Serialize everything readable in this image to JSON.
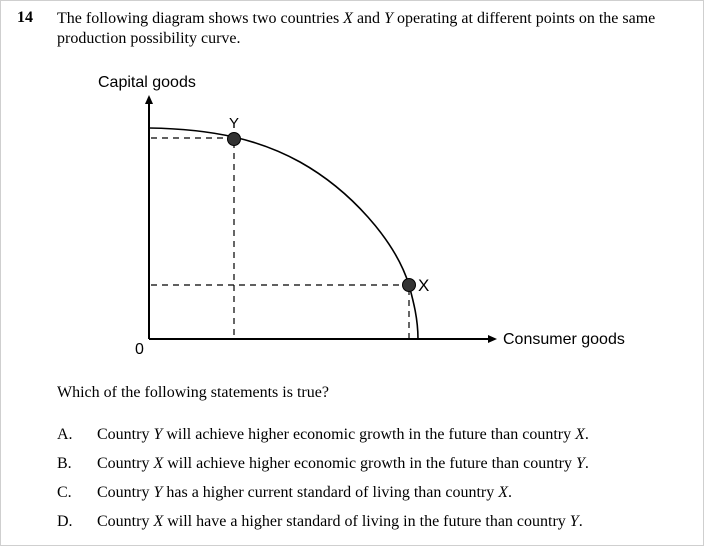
{
  "question": {
    "number": "14",
    "stem": {
      "part1": "The following diagram shows two countries ",
      "x": "X",
      "part2": " and ",
      "y": "Y",
      "part3": " operating at different points on the same production possibility curve."
    },
    "prompt": "Which of the following statements is true?"
  },
  "diagram": {
    "y_axis_label": "Capital goods",
    "x_axis_label": "Consumer goods",
    "origin_label": "0",
    "point_y_label": "Y",
    "point_x_label": "X",
    "line_color": "#000000",
    "point_color": "#333333"
  },
  "options": [
    {
      "letter": "A.",
      "pre": "Country ",
      "country": "Y",
      "post": " will achieve higher economic growth in the future than country ",
      "other": "X",
      "end": "."
    },
    {
      "letter": "B.",
      "pre": "Country ",
      "country": "X",
      "post": " will achieve higher economic growth in the future than country ",
      "other": "Y",
      "end": "."
    },
    {
      "letter": "C.",
      "pre": "Country ",
      "country": "Y",
      "post": " has a higher current standard of living than country ",
      "other": "X",
      "end": "."
    },
    {
      "letter": "D.",
      "pre": "Country ",
      "country": "X",
      "post": " will have a higher standard of living in the future than country ",
      "other": "Y",
      "end": "."
    }
  ]
}
